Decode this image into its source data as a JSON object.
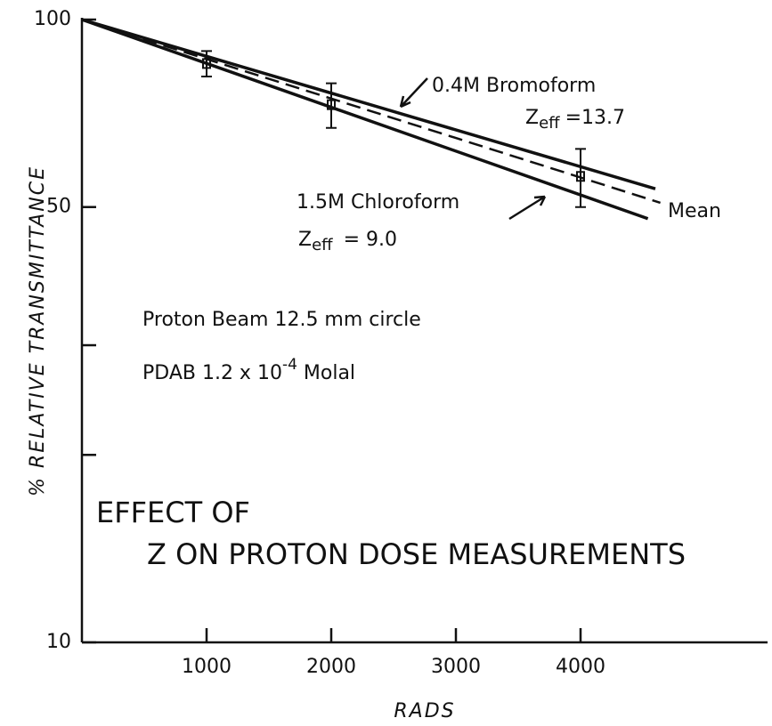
{
  "chart_data": {
    "type": "line",
    "xlabel": "RADS",
    "ylabel": "% RELATIVE TRANSMITTANCE",
    "log_y": true,
    "xlim": [
      0,
      5500
    ],
    "ylim": [
      10,
      100
    ],
    "xticks": [
      1000,
      2000,
      3000,
      4000
    ],
    "yticks": [
      10,
      50,
      100
    ],
    "yminor_ticks": [
      20,
      30
    ],
    "series": [
      {
        "name": "0.4M Bromoform",
        "color": "#111111",
        "dashed": false,
        "x": [
          0,
          4600
        ],
        "values": [
          100,
          53.5
        ]
      },
      {
        "name": "1.5M Chloroform",
        "color": "#111111",
        "dashed": false,
        "x": [
          0,
          4540
        ],
        "values": [
          100,
          47.9
        ]
      },
      {
        "name": "Mean",
        "color": "#111111",
        "dashed": true,
        "x": [
          0,
          4640
        ],
        "values": [
          100,
          50.8
        ]
      }
    ],
    "points": {
      "x": [
        1000,
        2000,
        4000
      ],
      "values": [
        85,
        73,
        56
      ],
      "errors": [
        4,
        6,
        6
      ]
    },
    "zeff_bromoform": {
      "symbol": "Z",
      "sub": "eff",
      "text": "=13.7"
    },
    "zeff_chloroform": {
      "symbol": "Z",
      "sub": "eff",
      "text": "= 9.0"
    },
    "note_beam": "Proton Beam 12.5 mm circle",
    "note_pdab": {
      "text": "PDAB 1.2 x 10",
      "sup": "-4",
      "tail": " Molal"
    },
    "title_line1": "EFFECT OF",
    "title_line2": "Z ON PROTON DOSE MEASUREMENTS"
  }
}
